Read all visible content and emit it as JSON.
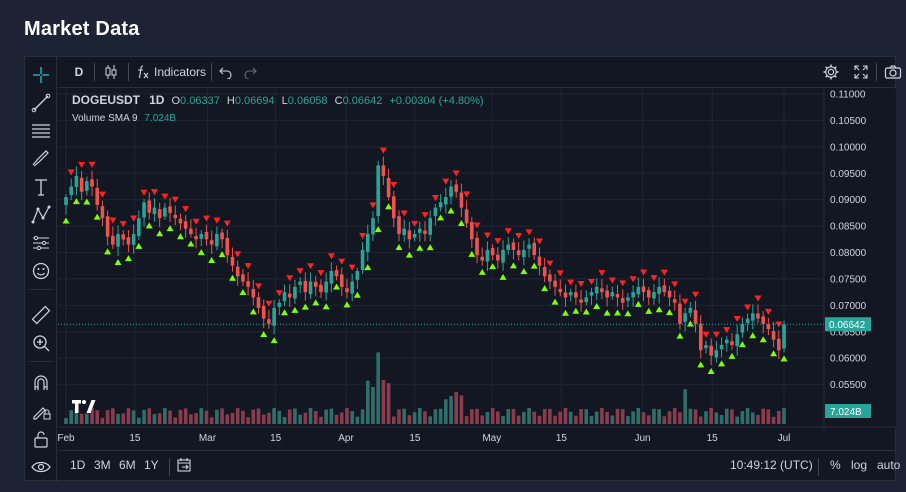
{
  "page": {
    "title": "Market Data"
  },
  "toolbar": {
    "interval": "D",
    "indicators_label": "Indicators"
  },
  "legend": {
    "symbol": "DOGEUSDT",
    "interval": "1D",
    "o_label": "O",
    "o": "0.06337",
    "h_label": "H",
    "h": "0.06694",
    "l_label": "L",
    "l": "0.06058",
    "c_label": "C",
    "c": "0.06642",
    "change": "+0.00304 (+4.80%)",
    "volume_label": "Volume SMA 9",
    "volume_value": "7.024B"
  },
  "bottom": {
    "ranges": [
      "1D",
      "3M",
      "6M",
      "1Y"
    ],
    "clock": "10:49:12 (UTC)",
    "percent": "%",
    "log": "log",
    "auto": "auto"
  },
  "colors": {
    "up": "#26a69a",
    "down": "#ef5350",
    "vol_up": "#2f6f6a",
    "vol_down": "#8a3b4c",
    "marker_buy": "#7fff00",
    "marker_sell": "#ff2222",
    "background": "#131722",
    "grid": "#1f2433"
  },
  "chart_data": {
    "type": "candlestick",
    "symbol": "DOGEUSDT",
    "ylim": [
      0.05,
      0.11
    ],
    "y_ticks": [
      "0.11000",
      "0.10500",
      "0.10000",
      "0.09500",
      "0.09000",
      "0.08500",
      "0.08000",
      "0.07500",
      "0.07000",
      "0.06500",
      "0.06000",
      "0.05500"
    ],
    "x_ticks": [
      "Feb",
      "15",
      "Mar",
      "15",
      "Apr",
      "15",
      "May",
      "15",
      "Jun",
      "15",
      "Jul"
    ],
    "last_price": "0.06642",
    "last_volume": "7.024B",
    "close": [
      0.0905,
      0.0925,
      0.0945,
      0.0915,
      0.0935,
      0.0925,
      0.089,
      0.0865,
      0.083,
      0.0815,
      0.0835,
      0.0825,
      0.0815,
      0.0835,
      0.0865,
      0.0895,
      0.0875,
      0.0885,
      0.0865,
      0.0885,
      0.0875,
      0.0865,
      0.0855,
      0.0845,
      0.0835,
      0.0825,
      0.0835,
      0.0825,
      0.0815,
      0.0835,
      0.0825,
      0.0795,
      0.0775,
      0.0755,
      0.0745,
      0.0735,
      0.0715,
      0.0695,
      0.0675,
      0.0665,
      0.0695,
      0.0705,
      0.0725,
      0.0715,
      0.0735,
      0.0745,
      0.0725,
      0.0745,
      0.0735,
      0.0725,
      0.0745,
      0.0765,
      0.0755,
      0.0735,
      0.0725,
      0.0745,
      0.0765,
      0.0805,
      0.0835,
      0.0865,
      0.0965,
      0.0945,
      0.0905,
      0.0865,
      0.0835,
      0.0845,
      0.0825,
      0.0835,
      0.0845,
      0.0835,
      0.0865,
      0.0885,
      0.0895,
      0.0905,
      0.0925,
      0.0915,
      0.0885,
      0.0855,
      0.0825,
      0.0795,
      0.0785,
      0.0805,
      0.0795,
      0.0785,
      0.0805,
      0.0815,
      0.0805,
      0.0795,
      0.0805,
      0.0815,
      0.0795,
      0.0775,
      0.0755,
      0.0745,
      0.0735,
      0.0725,
      0.0715,
      0.0725,
      0.0715,
      0.0705,
      0.0715,
      0.0725,
      0.0735,
      0.0725,
      0.0715,
      0.0725,
      0.0715,
      0.0705,
      0.0715,
      0.0725,
      0.0735,
      0.0725,
      0.0715,
      0.0725,
      0.0735,
      0.0725,
      0.0715,
      0.0705,
      0.0665,
      0.0685,
      0.0695,
      0.0665,
      0.0615,
      0.0625,
      0.0605,
      0.0615,
      0.0625,
      0.0635,
      0.0625,
      0.0645,
      0.0665,
      0.0675,
      0.0685,
      0.0675,
      0.0665,
      0.0655,
      0.0635,
      0.0615,
      0.0664
    ]
  }
}
